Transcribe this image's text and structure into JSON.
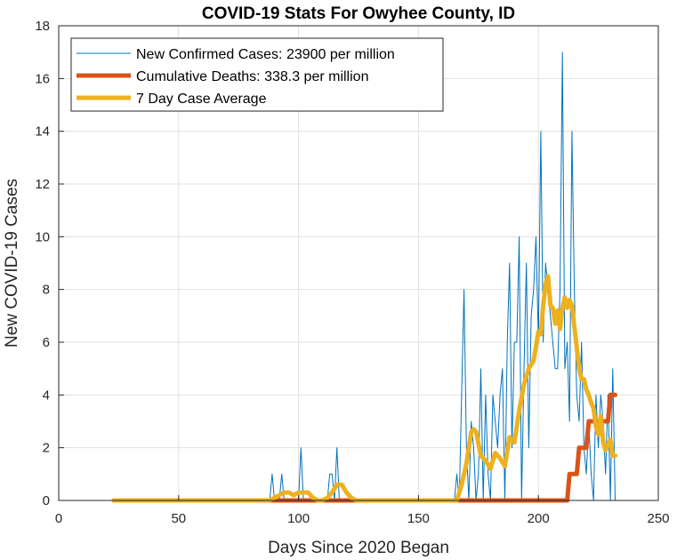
{
  "chart_data": {
    "type": "line",
    "title": "COVID-19 Stats For Owyhee County, ID",
    "xlabel": "Days Since 2020 Began",
    "ylabel": "New COVID-19 Cases",
    "xlim": [
      0,
      250
    ],
    "ylim": [
      0,
      18
    ],
    "xticks": [
      0,
      50,
      100,
      150,
      200,
      250
    ],
    "yticks": [
      0,
      2,
      4,
      6,
      8,
      10,
      12,
      14,
      16,
      18
    ],
    "grid": true,
    "legend_position": "top-left",
    "series": [
      {
        "name": "New Confirmed Cases: 23900 per million",
        "color": "#0072BD",
        "x": [
          23,
          30,
          40,
          50,
          60,
          70,
          80,
          88,
          89,
          90,
          91,
          92,
          93,
          94,
          95,
          96,
          97,
          98,
          99,
          100,
          101,
          102,
          103,
          104,
          105,
          106,
          107,
          108,
          109,
          110,
          111,
          112,
          113,
          114,
          115,
          116,
          117,
          118,
          119,
          120,
          121,
          122,
          123,
          124,
          125,
          130,
          140,
          150,
          160,
          165,
          166,
          167,
          168,
          169,
          170,
          171,
          172,
          173,
          174,
          175,
          176,
          177,
          178,
          179,
          180,
          181,
          182,
          183,
          184,
          185,
          186,
          187,
          188,
          189,
          190,
          191,
          192,
          193,
          194,
          195,
          196,
          197,
          198,
          199,
          200,
          201,
          202,
          203,
          204,
          205,
          206,
          207,
          208,
          209,
          210,
          211,
          212,
          213,
          214,
          215,
          216,
          217,
          218,
          219,
          220,
          221,
          222,
          223,
          224,
          225,
          226,
          227,
          228,
          229,
          230,
          231,
          232
        ],
        "y": [
          0,
          0,
          0,
          0,
          0,
          0,
          0,
          0,
          1,
          0,
          0,
          0,
          1,
          0,
          0,
          0,
          0,
          0,
          0,
          0,
          2,
          0,
          0,
          0,
          0,
          0,
          0,
          0,
          0,
          0,
          0,
          0,
          1,
          1,
          0,
          2,
          0,
          0,
          0,
          0,
          0,
          0,
          0,
          0,
          0,
          0,
          0,
          0,
          0,
          0,
          1,
          0,
          4,
          8,
          2,
          0,
          3,
          2,
          0,
          1,
          5,
          0,
          4,
          1,
          0,
          4,
          3,
          2,
          4,
          5,
          0,
          6,
          9,
          2,
          6,
          6,
          10,
          0,
          5,
          9,
          2,
          7,
          8,
          10,
          6,
          14,
          6,
          9,
          8,
          7,
          6,
          5,
          5,
          8,
          17,
          5,
          6,
          3,
          14,
          8,
          4,
          3,
          6,
          2,
          1,
          3,
          1,
          0,
          4,
          2,
          4,
          3,
          1,
          4,
          0,
          5,
          0
        ]
      },
      {
        "name": "Cumulative Deaths: 338.3 per million",
        "color": "#D95319",
        "x": [
          23,
          212,
          213,
          216,
          217,
          220,
          221,
          225,
          226,
          229,
          230,
          232
        ],
        "y": [
          0,
          0,
          1,
          1,
          2,
          2,
          3,
          3,
          3,
          3,
          4,
          4
        ]
      },
      {
        "name": "7 Day Case Average",
        "color": "#EDB120",
        "x": [
          23,
          88,
          90,
          92,
          94,
          96,
          98,
          100,
          102,
          104,
          106,
          108,
          110,
          112,
          114,
          116,
          118,
          120,
          122,
          124,
          126,
          130,
          140,
          150,
          160,
          166,
          168,
          170,
          172,
          173,
          174,
          176,
          178,
          180,
          182,
          184,
          186,
          188,
          190,
          192,
          194,
          196,
          198,
          200,
          201,
          202,
          203,
          204,
          205,
          206,
          207,
          208,
          209,
          210,
          211,
          212,
          213,
          214,
          215,
          216,
          217,
          218,
          219,
          220,
          221,
          222,
          223,
          224,
          225,
          226,
          227,
          228,
          229,
          230,
          231,
          232
        ],
        "y": [
          0,
          0,
          0.1,
          0.2,
          0.3,
          0.3,
          0.2,
          0.3,
          0.3,
          0.3,
          0.1,
          0,
          0,
          0.1,
          0.3,
          0.6,
          0.6,
          0.3,
          0.1,
          0,
          0,
          0,
          0,
          0,
          0,
          0,
          0.6,
          1.4,
          2.6,
          2.7,
          2.6,
          1.7,
          1.5,
          1.2,
          1.8,
          1.6,
          1.3,
          2.4,
          2.2,
          3.4,
          4.4,
          5,
          5.3,
          6.4,
          6.3,
          7.4,
          8.2,
          8.5,
          7.4,
          7.3,
          6.7,
          7.2,
          6.5,
          7.3,
          7.7,
          7.3,
          7.6,
          7.4,
          6.6,
          5.8,
          5,
          4.6,
          4.6,
          4.2,
          4.0,
          3.7,
          3.5,
          2.8,
          2.5,
          3.2,
          2.2,
          1.9,
          2.1,
          2.3,
          1.7,
          1.7
        ]
      }
    ]
  }
}
